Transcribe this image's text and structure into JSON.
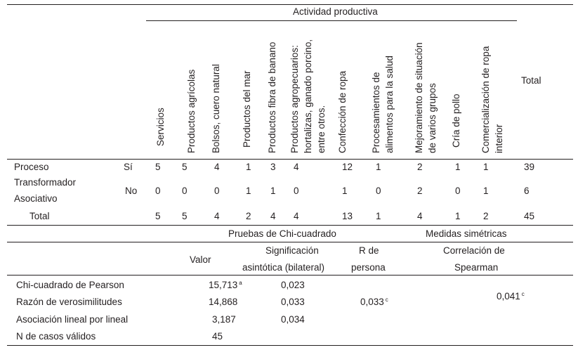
{
  "header": {
    "group_title": "Actividad productiva",
    "total_label": "Total"
  },
  "columns": [
    [
      "Servicios"
    ],
    [
      "Productos agrícolas"
    ],
    [
      "Bolsos, cuero natural"
    ],
    [
      "Productos del mar"
    ],
    [
      "Productos fibra de banano"
    ],
    [
      "Productos    agropecuarios:",
      "hortalizas,  ganado porcino,",
      "entre otros."
    ],
    [
      "Confección de ropa"
    ],
    [
      "Procesamientos              de",
      "alimentos para la salud"
    ],
    [
      "Mejoramiento  de  situación",
      "de varios grupos"
    ],
    [
      "Cría de pollo"
    ],
    [
      "Comercialización   de   ropa",
      "interior"
    ]
  ],
  "crosstab": {
    "row_label_lines": [
      "Proceso",
      "Transformador",
      "Asociativo"
    ],
    "yes_label": "Sí",
    "no_label": "No",
    "total_label": "Total",
    "yes_values": [
      "5",
      "5",
      "4",
      "1",
      "3",
      "4",
      "12",
      "1",
      "2",
      "1",
      "1"
    ],
    "yes_total": "39",
    "no_values": [
      "0",
      "0",
      "0",
      "1",
      "1",
      "0",
      "1",
      "0",
      "2",
      "0",
      "1"
    ],
    "no_total": "6",
    "total_values": [
      "5",
      "5",
      "4",
      "2",
      "4",
      "4",
      "13",
      "1",
      "4",
      "1",
      "2"
    ],
    "grand_total": "45"
  },
  "tests": {
    "chi_title": "Pruebas de Chi-cuadrado",
    "sym_title": "Medidas simétricas",
    "col_value": "Valor",
    "col_sig_1": "Significación",
    "col_sig_2": "asintótica (bilateral)",
    "col_r_1": "R de",
    "col_r_2": "persona",
    "col_corr_1": "Correlación de",
    "col_corr_2": "Spearman",
    "rows": [
      {
        "label": "Chi-cuadrado de Pearson",
        "value": "15,713",
        "value_sup": "a",
        "sig": "0,023"
      },
      {
        "label": "Razón de verosimilitudes",
        "value": "14,868",
        "sig": "0,033"
      },
      {
        "label": "Asociación lineal por lineal",
        "value": "3,187",
        "sig": "0,034"
      },
      {
        "label": "N de casos válidos",
        "value": "45"
      }
    ],
    "r_value": "0,033",
    "r_sup": "c",
    "corr_value": "0,041",
    "corr_sup": "c"
  }
}
